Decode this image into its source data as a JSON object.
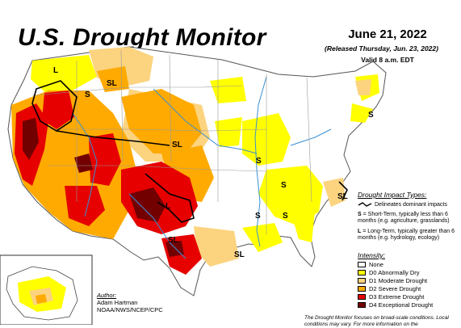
{
  "header": {
    "title": "U.S. Drought Monitor",
    "date": "June 21, 2022",
    "released": "(Released Thursday, Jun. 23, 2022)",
    "valid": "Valid 8 a.m. EDT"
  },
  "impact_types": {
    "heading": "Drought Impact Types:",
    "delineates": "Delineates dominant impacts",
    "s_key": "S",
    "s_text": " = Short-Term, typically less than 6 months (e.g. agriculture, grasslands)",
    "l_key": "L",
    "l_text": " = Long-Term, typically greater than 6 months (e.g. hydrology, ecology)"
  },
  "legend": {
    "heading": "Intensity:",
    "items": [
      {
        "label": "None",
        "color": "#ffffff"
      },
      {
        "label": "D0 Abnormally Dry",
        "color": "#ffff00"
      },
      {
        "label": "D1 Moderate Drought",
        "color": "#fcd37f"
      },
      {
        "label": "D2 Severe Drought",
        "color": "#ffaa00"
      },
      {
        "label": "D3 Extreme Drought",
        "color": "#e60000"
      },
      {
        "label": "D4 Exceptional Drought",
        "color": "#730000"
      }
    ]
  },
  "author": {
    "heading": "Author:",
    "name": "Adam Hartman",
    "org": "NOAA/NWS/NCEP/CPC"
  },
  "note": "The Drought Monitor focuses on broad-scale conditions. Local conditions may vary. For more information on the",
  "map_labels": [
    "L",
    "SL",
    "SL",
    "S",
    "S",
    "L",
    "SL",
    "S",
    "S",
    "S",
    "SL",
    "SL",
    "S"
  ],
  "colors": {
    "state_border": "#9a9a9a",
    "river": "#3a8fd0",
    "impact_line": "#000000"
  }
}
